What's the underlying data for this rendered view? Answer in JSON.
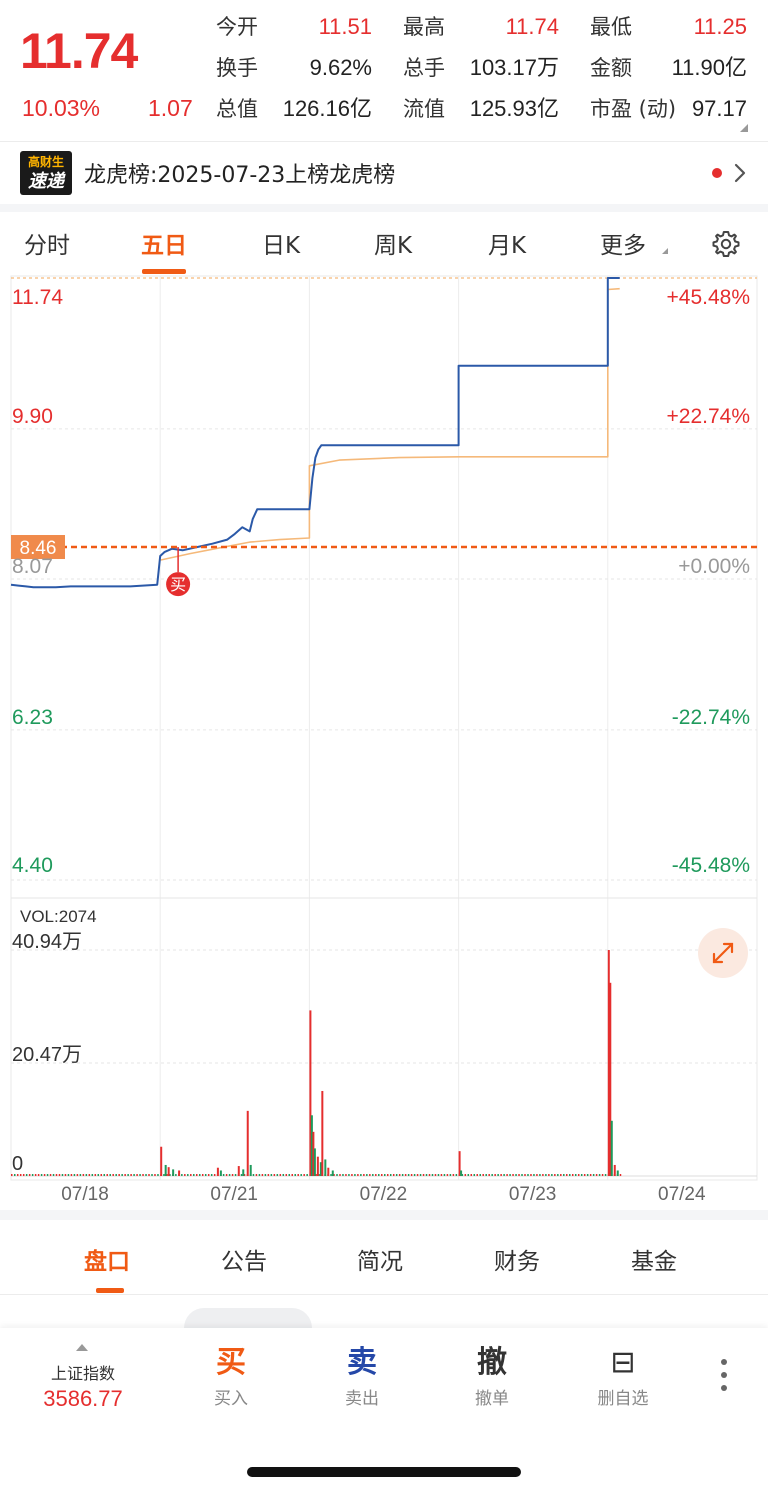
{
  "quote": {
    "price": "11.74",
    "change_pct": "10.03%",
    "change_abs": "1.07",
    "stats": [
      {
        "label": "今开",
        "value": "11.51",
        "color": "red"
      },
      {
        "label": "最高",
        "value": "11.74",
        "color": "red"
      },
      {
        "label": "最低",
        "value": "11.25",
        "color": "red"
      },
      {
        "label": "换手",
        "value": "9.62%",
        "color": "dark"
      },
      {
        "label": "总手",
        "value": "103.17万",
        "color": "dark"
      },
      {
        "label": "金额",
        "value": "11.90亿",
        "color": "dark"
      },
      {
        "label": "总值",
        "value": "126.16亿",
        "color": "dark"
      },
      {
        "label": "流值",
        "value": "125.93亿",
        "color": "dark"
      },
      {
        "label": "市盈 (动)",
        "value": "97.17",
        "color": "dark"
      }
    ]
  },
  "banner": {
    "logo_line1": "高财生",
    "logo_line2": "速递",
    "text": "龙虎榜:2025-07-23上榜龙虎榜"
  },
  "tabs": [
    {
      "label": "分时",
      "active": false
    },
    {
      "label": "五日",
      "active": true
    },
    {
      "label": "日K",
      "active": false
    },
    {
      "label": "周K",
      "active": false
    },
    {
      "label": "月K",
      "active": false
    },
    {
      "label": "更多",
      "active": false
    }
  ],
  "chart_data": {
    "type": "line",
    "x": [
      "07/18",
      "07/21",
      "07/22",
      "07/23",
      "07/24"
    ],
    "price_axis": [
      "11.74",
      "9.90",
      "8.07",
      "6.23",
      "4.40"
    ],
    "pct_axis": [
      "+45.48%",
      "+22.74%",
      "+0.00%",
      "-22.74%",
      "-45.48%"
    ],
    "ylim": [
      4.4,
      11.74
    ],
    "prev_close": 8.07,
    "cost_line": {
      "label": "8.46",
      "value": 8.46
    },
    "buy_marker": "买",
    "series": [
      {
        "color": "#2b59a8",
        "values": [
          [
            0.0,
            8.0
          ],
          [
            0.05,
            7.99
          ],
          [
            0.1,
            7.98
          ],
          [
            0.15,
            7.97
          ],
          [
            0.2,
            7.97
          ],
          [
            0.3,
            7.97
          ],
          [
            0.4,
            7.98
          ],
          [
            0.5,
            7.98
          ],
          [
            0.6,
            7.98
          ],
          [
            0.7,
            7.98
          ],
          [
            0.8,
            7.98
          ],
          [
            0.98,
            8.0
          ],
          [
            1.0,
            8.35
          ],
          [
            1.03,
            8.4
          ],
          [
            1.08,
            8.44
          ],
          [
            1.15,
            8.42
          ],
          [
            1.25,
            8.46
          ],
          [
            1.35,
            8.5
          ],
          [
            1.45,
            8.55
          ],
          [
            1.5,
            8.62
          ],
          [
            1.55,
            8.7
          ],
          [
            1.6,
            8.65
          ],
          [
            1.62,
            8.8
          ],
          [
            1.65,
            8.92
          ],
          [
            1.7,
            8.92
          ],
          [
            1.8,
            8.92
          ],
          [
            1.9,
            8.92
          ],
          [
            2.0,
            8.92
          ],
          [
            2.02,
            9.3
          ],
          [
            2.04,
            9.55
          ],
          [
            2.06,
            9.65
          ],
          [
            2.08,
            9.7
          ],
          [
            2.1,
            9.7
          ],
          [
            2.3,
            9.7
          ],
          [
            2.5,
            9.7
          ],
          [
            2.7,
            9.7
          ],
          [
            3.0,
            9.7
          ],
          [
            3.0,
            10.67
          ],
          [
            3.3,
            10.67
          ],
          [
            3.6,
            10.67
          ],
          [
            4.0,
            10.67
          ],
          [
            4.0,
            11.74
          ],
          [
            4.02,
            11.74
          ],
          [
            4.08,
            11.74
          ]
        ]
      },
      {
        "color": "#f5b97a",
        "values": [
          [
            1.0,
            8.3
          ],
          [
            1.2,
            8.38
          ],
          [
            1.4,
            8.45
          ],
          [
            1.6,
            8.52
          ],
          [
            1.8,
            8.55
          ],
          [
            2.0,
            8.57
          ],
          [
            2.0,
            9.45
          ],
          [
            2.2,
            9.52
          ],
          [
            2.6,
            9.55
          ],
          [
            3.0,
            9.56
          ],
          [
            3.0,
            9.56
          ],
          [
            4.0,
            9.56
          ],
          [
            4.0,
            11.6
          ],
          [
            4.08,
            11.61
          ]
        ]
      }
    ],
    "volume": {
      "title": "VOL:2074",
      "axis": [
        "40.94万",
        "20.47万",
        "0"
      ],
      "ylim": [
        0,
        40.94
      ],
      "bars": [
        [
          1.0,
          5.3,
          "red"
        ],
        [
          1.03,
          2.0,
          "green"
        ],
        [
          1.05,
          1.6,
          "red"
        ],
        [
          1.08,
          1.2,
          "green"
        ],
        [
          1.12,
          1.0,
          "red"
        ],
        [
          1.38,
          1.5,
          "red"
        ],
        [
          1.4,
          1.0,
          "green"
        ],
        [
          1.52,
          1.8,
          "red"
        ],
        [
          1.55,
          1.2,
          "green"
        ],
        [
          1.58,
          11.8,
          "red"
        ],
        [
          1.6,
          2.0,
          "green"
        ],
        [
          2.0,
          30.0,
          "red"
        ],
        [
          2.01,
          11.0,
          "green"
        ],
        [
          2.02,
          8.0,
          "red"
        ],
        [
          2.03,
          5.0,
          "green"
        ],
        [
          2.05,
          3.5,
          "red"
        ],
        [
          2.07,
          2.5,
          "green"
        ],
        [
          2.08,
          15.4,
          "red"
        ],
        [
          2.1,
          3.0,
          "green"
        ],
        [
          2.12,
          1.5,
          "red"
        ],
        [
          2.15,
          1.0,
          "green"
        ],
        [
          3.0,
          4.5,
          "red"
        ],
        [
          3.01,
          1.0,
          "green"
        ],
        [
          4.0,
          40.94,
          "red"
        ],
        [
          4.01,
          35.0,
          "red"
        ],
        [
          4.02,
          10.0,
          "green"
        ],
        [
          4.04,
          2.0,
          "red"
        ],
        [
          4.06,
          1.0,
          "green"
        ]
      ]
    }
  },
  "info_tabs": [
    {
      "label": "盘口",
      "active": true
    },
    {
      "label": "公告",
      "active": false
    },
    {
      "label": "简况",
      "active": false
    },
    {
      "label": "财务",
      "active": false
    },
    {
      "label": "基金",
      "active": false
    }
  ],
  "trade_bar": {
    "index_name": "上证指数",
    "index_value": "3586.77",
    "actions": [
      {
        "glyph": "买",
        "label": "买入",
        "color": "#f05a14"
      },
      {
        "glyph": "卖",
        "label": "卖出",
        "color": "#2548a8"
      },
      {
        "glyph": "撤",
        "label": "撤单",
        "color": "#333333"
      },
      {
        "glyph": "⊟",
        "label": "删自选",
        "color": "#333333"
      }
    ]
  },
  "icons": {
    "settings": "gear-icon",
    "expand": "expand-icon",
    "more": "kebab-icon",
    "banner_arrow": "chevron-right-icon"
  }
}
